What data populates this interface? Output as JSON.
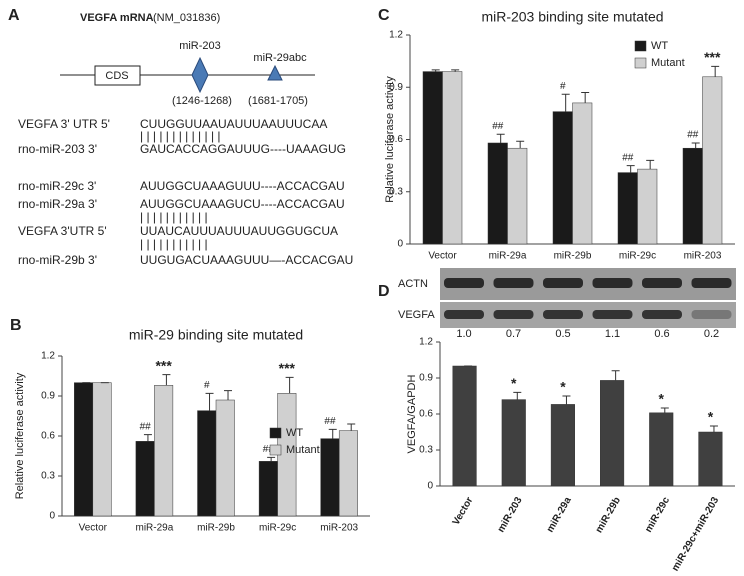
{
  "diagram": {
    "label": "A",
    "title_bold": "VEGFA mRNA",
    "title_rest": "(NM_031836)",
    "cds": "CDS",
    "sites": [
      {
        "name": "miR-203",
        "range": "(1246-1268)"
      },
      {
        "name": "miR-29abc",
        "range": "(1681-1705)"
      }
    ],
    "rows": [
      {
        "label": "VEGFA 3' UTR  5'",
        "seq": "CUUGGUUAAUAUUUAAUUUCAA"
      },
      {
        "label": "",
        "seq": "| | | | | | |           | | | | | |"
      },
      {
        "label": "rno-miR-203  3'",
        "seq": "GAUCACCAGGAUUUG----UAAAGUG"
      },
      {
        "label": "rno-miR-29c    3'",
        "seq": "AUUGGCUAAAGUUU----ACCACGAU"
      },
      {
        "label": "rno-miR-29a    3'",
        "seq": "AUUGGCUAAAGUCU----ACCACGAU"
      },
      {
        "label": "",
        "seq": "| | | |               | | | | | | |"
      },
      {
        "label": "VEGFA 3'UTR   5'",
        "seq": "UUAUCAUUUAUUUAUUGGUGCUA"
      },
      {
        "label": "",
        "seq": "| | | |               | | | | | | |"
      },
      {
        "label": "rno-miR-29b  3'",
        "seq": "UUGUGACUAAAGUUU—-ACCACGAU"
      }
    ]
  },
  "blot": {
    "rows": [
      "ACTN",
      "VEGFA"
    ],
    "ratios": [
      "1.0",
      "0.7",
      "0.5",
      "1.1",
      "0.6",
      "0.2"
    ]
  },
  "chart_data": [
    {
      "type": "bar",
      "label": "B",
      "title": "miR-29 binding site mutated",
      "y_label": "Relative luciferase activity",
      "categories": [
        "Vector",
        "miR-29a",
        "miR-29b",
        "miR-29c",
        "miR-203"
      ],
      "series": [
        {
          "name": "WT",
          "color": "#1a1a1a",
          "values": [
            1.0,
            0.56,
            0.79,
            0.41,
            0.58
          ],
          "errors": [
            0,
            0.05,
            0.13,
            0.03,
            0.07
          ],
          "annotations": [
            null,
            "##",
            "#",
            "##",
            "##"
          ]
        },
        {
          "name": "Mutant",
          "color": "#d0d0d0",
          "values": [
            1.0,
            0.98,
            0.87,
            0.92,
            0.64
          ],
          "errors": [
            0,
            0.08,
            0.07,
            0.12,
            0.05
          ],
          "annotations": [
            null,
            "***",
            null,
            "***",
            null
          ]
        }
      ],
      "ylim": [
        0,
        1.2
      ],
      "yticks": [
        0,
        0.3,
        0.6,
        0.9,
        1.2
      ],
      "legend": "right"
    },
    {
      "type": "bar",
      "label": "C",
      "title": "miR-203 binding site mutated",
      "y_label": "Relative luciferase activity",
      "categories": [
        "Vector",
        "miR-29a",
        "miR-29b",
        "miR-29c",
        "miR-203"
      ],
      "series": [
        {
          "name": "WT",
          "color": "#1a1a1a",
          "values": [
            0.99,
            0.58,
            0.76,
            0.41,
            0.55
          ],
          "errors": [
            0.01,
            0.05,
            0.1,
            0.04,
            0.03
          ],
          "annotations": [
            null,
            "##",
            "#",
            "##",
            "##"
          ]
        },
        {
          "name": "Mutant",
          "color": "#d0d0d0",
          "values": [
            0.99,
            0.55,
            0.81,
            0.43,
            0.96
          ],
          "errors": [
            0.01,
            0.04,
            0.06,
            0.05,
            0.06
          ],
          "annotations": [
            null,
            null,
            null,
            null,
            "***"
          ]
        }
      ],
      "ylim": [
        0,
        1.2
      ],
      "yticks": [
        0,
        0.3,
        0.6,
        0.9,
        1.2
      ],
      "legend": "upper right"
    },
    {
      "type": "bar",
      "label": "D",
      "y_label": "VEGFA/GAPDH",
      "categories": [
        "Vector",
        "miR-203",
        "miR-29a",
        "miR-29b",
        "miR-29c",
        "miR-29c+miR-203"
      ],
      "values": [
        1.0,
        0.72,
        0.68,
        0.88,
        0.61,
        0.45
      ],
      "errors": [
        0,
        0.06,
        0.07,
        0.08,
        0.04,
        0.05
      ],
      "annotations": [
        null,
        "*",
        "*",
        null,
        "*",
        "*"
      ],
      "color": "#404040",
      "ylim": [
        0,
        1.2
      ],
      "yticks": [
        0,
        0.3,
        0.6,
        0.9,
        1.2
      ]
    }
  ]
}
